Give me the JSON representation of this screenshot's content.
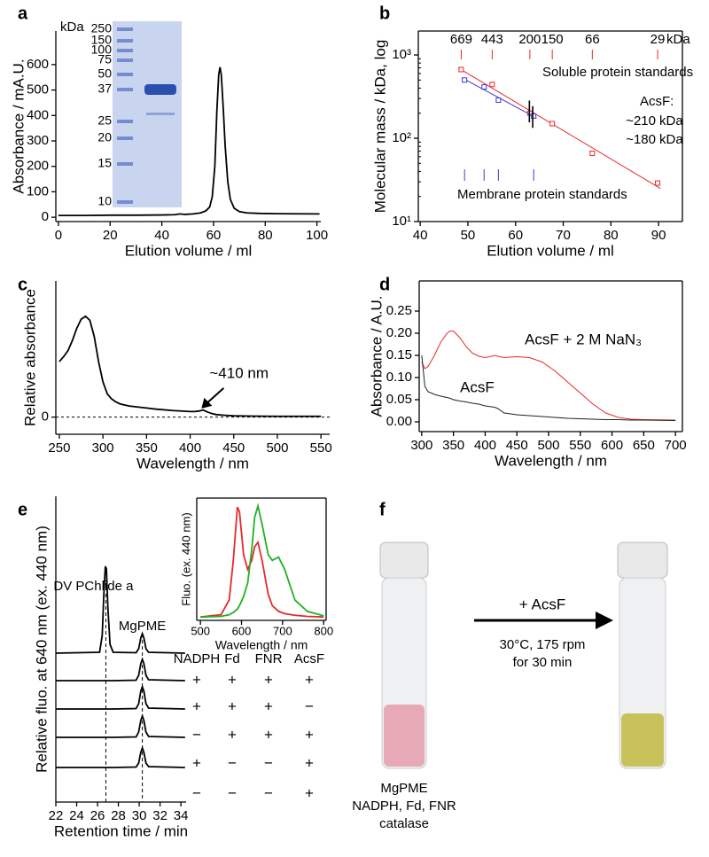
{
  "chart_data": [
    {
      "panel": "a",
      "type": "line",
      "x_label": "Elution volume / ml",
      "y_label": "Absorbance / mA.U.",
      "xlim": [
        -1,
        101.5
      ],
      "ylim": [
        -17,
        732
      ],
      "xticks": [
        0,
        20,
        40,
        60,
        80,
        100
      ],
      "yticks": [
        0,
        100,
        200,
        300,
        400,
        500,
        600
      ],
      "x": [
        0,
        10,
        20,
        30,
        40,
        45,
        47,
        49,
        52,
        55,
        57,
        58.5,
        59.5,
        60.5,
        61.3,
        62,
        62.5,
        63,
        63.7,
        64.5,
        65.5,
        66.5,
        68,
        70,
        73,
        78,
        85,
        101
      ],
      "series": [
        {
          "color": "#000000",
          "values": [
            7,
            7,
            8,
            8,
            9,
            10,
            13,
            11,
            13,
            17,
            25,
            40,
            80,
            200,
            420,
            560,
            590,
            560,
            440,
            280,
            140,
            70,
            35,
            22,
            17,
            15,
            14,
            13
          ]
        }
      ],
      "gel": {
        "unit": "kDa",
        "ladder": [
          250,
          150,
          100,
          75,
          50,
          37,
          25,
          20,
          15,
          10
        ]
      }
    },
    {
      "panel": "b",
      "type": "scatter",
      "log_y": true,
      "x_label": "Elution volume / ml",
      "y_label": "Molecular mass / kDa, log",
      "xlim": [
        39.6,
        95
      ],
      "ylim": [
        10,
        1940
      ],
      "xticks": [
        40,
        50,
        60,
        70,
        80,
        90
      ],
      "yticks": [
        {
          "value": 10,
          "label": "10¹"
        },
        {
          "value": 100,
          "label": "10²"
        },
        {
          "value": 1000,
          "label": "10³"
        }
      ],
      "unit": "kDa",
      "series": [
        {
          "name": "Soluble protein standards",
          "color": "#e8282b",
          "x": [
            48.6,
            55.1,
            63.0,
            67.7,
            76.1,
            89.8
          ],
          "values": [
            669,
            443,
            200,
            150,
            66,
            29
          ]
        },
        {
          "name": "Membrane protein standards",
          "color": "#3a3ad6",
          "x": [
            49.3,
            53.4,
            56.4,
            63.8
          ],
          "values": [
            500,
            414,
            287,
            185
          ]
        }
      ],
      "acsf": {
        "label": "AcsF:",
        "x": [
          62.9,
          63.6
        ],
        "values": [
          210,
          180
        ],
        "value_labels": [
          "~210",
          "~180"
        ],
        "colors": [
          "#e8282b",
          "#3a3ad6"
        ]
      }
    },
    {
      "panel": "c",
      "type": "line",
      "x_label": "Wavelength / nm",
      "y_label": "Relative absorbance",
      "xlim": [
        246,
        560
      ],
      "ylim": [
        -0.17,
        1.35
      ],
      "xticks": [
        250,
        300,
        350,
        400,
        450,
        500,
        550
      ],
      "yticks": [
        0
      ],
      "zero_line": "dashed",
      "annotation": {
        "text": "~410 nm",
        "x": 410
      },
      "x": [
        250,
        255,
        260,
        265,
        270,
        275,
        280,
        285,
        290,
        295,
        300,
        305,
        310,
        315,
        320,
        330,
        340,
        350,
        360,
        380,
        400,
        405,
        410,
        415,
        420,
        425,
        430,
        440,
        450,
        470,
        500,
        550
      ],
      "series": [
        {
          "color": "#000000",
          "values": [
            0.55,
            0.6,
            0.66,
            0.76,
            0.88,
            0.97,
            1.0,
            0.96,
            0.8,
            0.55,
            0.35,
            0.23,
            0.18,
            0.15,
            0.13,
            0.11,
            0.1,
            0.09,
            0.08,
            0.065,
            0.055,
            0.055,
            0.06,
            0.07,
            0.05,
            0.035,
            0.025,
            0.018,
            0.013,
            0.01,
            0.008,
            0.008
          ]
        }
      ]
    },
    {
      "panel": "d",
      "type": "line",
      "x_label": "Wavelength / nm",
      "y_label": "Absorbance / A.U.",
      "xlim": [
        296,
        711
      ],
      "ylim": [
        -0.022,
        0.318
      ],
      "xticks": [
        300,
        350,
        400,
        450,
        500,
        550,
        600,
        650,
        700
      ],
      "yticks": [
        {
          "value": 0,
          "label": "0.00"
        },
        {
          "value": 0.05,
          "label": "0.05"
        },
        {
          "value": 0.1,
          "label": "0.10"
        },
        {
          "value": 0.15,
          "label": "0.15"
        },
        {
          "value": 0.2,
          "label": "0.20"
        },
        {
          "value": 0.25,
          "label": "0.25"
        }
      ],
      "x": [
        300,
        305,
        310,
        320,
        330,
        340,
        345,
        350,
        360,
        370,
        380,
        390,
        400,
        410,
        415,
        420,
        430,
        450,
        470,
        490,
        510,
        530,
        550,
        570,
        590,
        610,
        630,
        650,
        700
      ],
      "series": [
        {
          "name": "AcsF + 2 M NaN₃",
          "color": "#e8282b",
          "values": [
            0.135,
            0.12,
            0.125,
            0.15,
            0.18,
            0.2,
            0.205,
            0.205,
            0.19,
            0.17,
            0.155,
            0.148,
            0.145,
            0.148,
            0.15,
            0.148,
            0.145,
            0.147,
            0.145,
            0.135,
            0.115,
            0.09,
            0.065,
            0.04,
            0.02,
            0.01,
            0.006,
            0.005,
            0.004
          ]
        },
        {
          "name": "AcsF",
          "color": "#222222",
          "values": [
            0.15,
            0.08,
            0.068,
            0.062,
            0.058,
            0.055,
            0.053,
            0.05,
            0.047,
            0.045,
            0.042,
            0.04,
            0.036,
            0.034,
            0.033,
            0.03,
            0.02,
            0.016,
            0.014,
            0.012,
            0.01,
            0.008,
            0.007,
            0.006,
            0.005,
            0.005,
            0.004,
            0.004,
            0.003
          ]
        }
      ]
    },
    {
      "panel": "e",
      "type": "line",
      "x_label": "Retention time / min",
      "y_label": "Relative fluo. at 640 nm (ex. 440 nm)",
      "xlim": [
        22,
        34.5
      ],
      "xticks": [
        22,
        24,
        26,
        28,
        30,
        32,
        34
      ],
      "x": [
        22,
        26.2,
        26.45,
        26.6,
        26.75,
        26.85,
        27.0,
        27.2,
        27.5,
        29.7,
        29.95,
        30.15,
        30.3,
        30.45,
        30.65,
        30.9,
        34.4
      ],
      "series": [
        {
          "color": "#000000",
          "values": [
            0,
            0.01,
            0.2,
            0.65,
            0.98,
            0.95,
            0.5,
            0.1,
            0.01,
            0.005,
            0.05,
            0.17,
            0.22,
            0.17,
            0.05,
            0.01,
            0
          ]
        },
        {
          "color": "#000000",
          "values": [
            0,
            0,
            0,
            0,
            0,
            0,
            0,
            0,
            0,
            0.005,
            0.06,
            0.19,
            0.24,
            0.19,
            0.06,
            0.01,
            0
          ]
        },
        {
          "color": "#000000",
          "values": [
            0,
            0,
            0,
            0,
            0,
            0,
            0,
            0,
            0,
            0.005,
            0.06,
            0.2,
            0.25,
            0.2,
            0.06,
            0.01,
            0
          ]
        },
        {
          "color": "#000000",
          "values": [
            0,
            0,
            0,
            0,
            0,
            0,
            0,
            0,
            0,
            0.005,
            0.06,
            0.19,
            0.24,
            0.19,
            0.06,
            0.01,
            0
          ]
        },
        {
          "color": "#000000",
          "values": [
            0,
            0,
            0,
            0,
            0,
            0,
            0,
            0,
            0,
            0.005,
            0.05,
            0.17,
            0.22,
            0.17,
            0.05,
            0.01,
            0
          ]
        }
      ],
      "peaks": [
        {
          "label": "DV PChlide a",
          "x": 26.8,
          "color": "#22b022"
        },
        {
          "label": "MgPME",
          "x": 30.3,
          "color": "#e8282b"
        }
      ],
      "conditions": {
        "columns": [
          "NADPH",
          "Fd",
          "FNR",
          "AcsF"
        ],
        "rows": [
          [
            "+",
            "+",
            "+",
            "+"
          ],
          [
            "+",
            "+",
            "+",
            "−"
          ],
          [
            "−",
            "+",
            "+",
            "+"
          ],
          [
            "+",
            "−",
            "−",
            "+"
          ],
          [
            "−",
            "−",
            "−",
            "+"
          ]
        ]
      }
    },
    {
      "type": "line",
      "x_label": "Wavelength / nm",
      "y_label": "Fluo. (ex. 440 nm)",
      "xlim": [
        491,
        806
      ],
      "ylim": [
        -0.03,
        1.05
      ],
      "xticks": [
        500,
        600,
        700,
        800
      ],
      "x": [
        500,
        550,
        570,
        580,
        590,
        595,
        605,
        615,
        625,
        632,
        640,
        650,
        665,
        675,
        690,
        705,
        730,
        760,
        800
      ],
      "series": [
        {
          "color": "#e8282b",
          "values": [
            0,
            0.02,
            0.15,
            0.5,
            0.97,
            0.93,
            0.55,
            0.42,
            0.5,
            0.62,
            0.66,
            0.5,
            0.2,
            0.1,
            0.05,
            0.03,
            0.015,
            0.005,
            0
          ]
        },
        {
          "color": "#22b022",
          "values": [
            0,
            0.005,
            0.02,
            0.04,
            0.07,
            0.1,
            0.18,
            0.3,
            0.6,
            0.88,
            0.98,
            0.82,
            0.55,
            0.5,
            0.53,
            0.42,
            0.15,
            0.05,
            0.01
          ]
        }
      ]
    }
  ],
  "panel_f": {
    "panel": "f",
    "reagent": "+ AcsF",
    "conditions": [
      "30°C, 175 rpm",
      "for 30 min"
    ],
    "sample": [
      "MgPME",
      "NADPH, Fd, FNR",
      "catalase"
    ]
  }
}
